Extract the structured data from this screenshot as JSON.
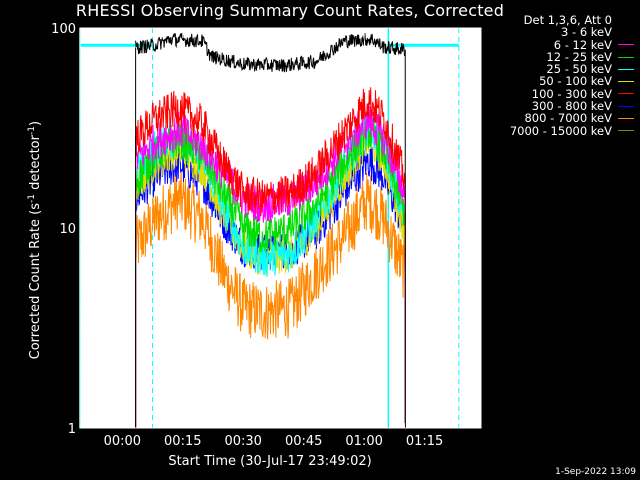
{
  "title": "RHESSI Observing Summary Count Rates, Corrected",
  "footer_date": "1-Sep-2022 13:09",
  "legend": {
    "header": "Det 1,3,6, Att 0",
    "items": [
      {
        "label": "3 - 6 keV",
        "color": "#000000"
      },
      {
        "label": "6 - 12 keV",
        "color": "#ff00ff"
      },
      {
        "label": "12 - 25 keV",
        "color": "#00dd00"
      },
      {
        "label": "25 - 50 keV",
        "color": "#00ffff"
      },
      {
        "label": "50 - 100 keV",
        "color": "#dddd00"
      },
      {
        "label": "100 - 300 keV",
        "color": "#ff0000"
      },
      {
        "label": "300 - 800 keV",
        "color": "#0000ff"
      },
      {
        "label": "800 - 7000 keV",
        "color": "#ff8800"
      },
      {
        "label": "7000 - 15000 keV",
        "color": "#888800"
      }
    ]
  },
  "axes": {
    "xlabel": "Start Time (30-Jul-17 23:49:02)",
    "ylabel_main": "Corrected Count Rate (s",
    "ylabel_sup1": "-1",
    "ylabel_mid": " detector",
    "ylabel_sup2": "-1",
    "ylabel_end": ")"
  },
  "chart_data": {
    "type": "line",
    "y_scale": "log",
    "ylim": [
      1,
      100
    ],
    "y_ticks": [
      "1",
      "10",
      "100"
    ],
    "x_ticks": [
      "00:00",
      "00:15",
      "00:30",
      "00:45",
      "01:00",
      "01:15"
    ],
    "x_tick_minutes": [
      0,
      15,
      30,
      45,
      60,
      75
    ],
    "xlim_minutes": [
      -10.5,
      89
    ],
    "data_start_minute": 3.3,
    "data_end_minute": 70.2,
    "cyan_markers_solid_minutes": [
      -10.5,
      66
    ],
    "cyan_markers_dashed_minutes": [
      7.5,
      83.5
    ],
    "cyan_top_level": 82,
    "series": [
      {
        "name": "3 - 6 keV",
        "color": "#000000",
        "points": [
          [
            3.3,
            80
          ],
          [
            8,
            82
          ],
          [
            12,
            88
          ],
          [
            20,
            86
          ],
          [
            22,
            72
          ],
          [
            30,
            66
          ],
          [
            40,
            65
          ],
          [
            48,
            68
          ],
          [
            55,
            86
          ],
          [
            62,
            88
          ],
          [
            65,
            80
          ],
          [
            70,
            78
          ]
        ]
      },
      {
        "name": "6 - 12 keV",
        "color": "#ff00ff",
        "points": [
          [
            3.3,
            22
          ],
          [
            8,
            27
          ],
          [
            14,
            31
          ],
          [
            20,
            26
          ],
          [
            25,
            19
          ],
          [
            30,
            14
          ],
          [
            35,
            13
          ],
          [
            42,
            14
          ],
          [
            48,
            17
          ],
          [
            55,
            26
          ],
          [
            61,
            35
          ],
          [
            65,
            28
          ],
          [
            70,
            15
          ]
        ]
      },
      {
        "name": "12 - 25 keV",
        "color": "#00dd00",
        "points": [
          [
            3.3,
            17
          ],
          [
            8,
            23
          ],
          [
            14,
            28
          ],
          [
            20,
            23
          ],
          [
            25,
            15
          ],
          [
            30,
            10
          ],
          [
            35,
            9
          ],
          [
            42,
            10
          ],
          [
            48,
            13
          ],
          [
            55,
            21
          ],
          [
            61,
            31
          ],
          [
            65,
            24
          ],
          [
            70,
            12
          ]
        ]
      },
      {
        "name": "25 - 50 keV",
        "color": "#00ffff",
        "points": [
          [
            3.3,
            19
          ],
          [
            8,
            25
          ],
          [
            14,
            29
          ],
          [
            20,
            22
          ],
          [
            25,
            13
          ],
          [
            30,
            8
          ],
          [
            35,
            7
          ],
          [
            42,
            7.5
          ],
          [
            48,
            11
          ],
          [
            55,
            20
          ],
          [
            61,
            33
          ],
          [
            65,
            25
          ],
          [
            70,
            11
          ]
        ]
      },
      {
        "name": "50 - 100 keV",
        "color": "#dddd00",
        "points": [
          [
            3.3,
            16
          ],
          [
            8,
            21
          ],
          [
            14,
            25
          ],
          [
            20,
            20
          ],
          [
            25,
            12
          ],
          [
            30,
            8
          ],
          [
            35,
            7
          ],
          [
            42,
            7.5
          ],
          [
            48,
            10
          ],
          [
            55,
            18
          ],
          [
            61,
            28
          ],
          [
            65,
            22
          ],
          [
            70,
            10
          ]
        ]
      },
      {
        "name": "100 - 300 keV",
        "color": "#ff0000",
        "points": [
          [
            3.3,
            28
          ],
          [
            8,
            35
          ],
          [
            14,
            40
          ],
          [
            20,
            33
          ],
          [
            25,
            21
          ],
          [
            30,
            15
          ],
          [
            35,
            14
          ],
          [
            42,
            15
          ],
          [
            48,
            19
          ],
          [
            55,
            30
          ],
          [
            61,
            44
          ],
          [
            65,
            35
          ],
          [
            70,
            18
          ]
        ]
      },
      {
        "name": "300 - 800 keV",
        "color": "#0000ff",
        "points": [
          [
            3.3,
            14
          ],
          [
            8,
            18
          ],
          [
            14,
            21
          ],
          [
            20,
            17
          ],
          [
            25,
            11
          ],
          [
            30,
            8
          ],
          [
            35,
            7.5
          ],
          [
            42,
            7.8
          ],
          [
            48,
            9.5
          ],
          [
            55,
            15
          ],
          [
            61,
            22
          ],
          [
            65,
            18
          ],
          [
            70,
            10
          ]
        ]
      },
      {
        "name": "800 - 7000 keV",
        "color": "#ff8800",
        "points": [
          [
            3.3,
            8
          ],
          [
            8,
            11
          ],
          [
            14,
            14
          ],
          [
            20,
            11
          ],
          [
            25,
            6
          ],
          [
            30,
            4
          ],
          [
            35,
            3.8
          ],
          [
            42,
            4
          ],
          [
            48,
            6
          ],
          [
            55,
            9
          ],
          [
            61,
            14
          ],
          [
            65,
            11
          ],
          [
            70,
            6
          ]
        ]
      },
      {
        "name": "7000 - 15000 keV",
        "color": "#888800",
        "points": []
      }
    ]
  }
}
